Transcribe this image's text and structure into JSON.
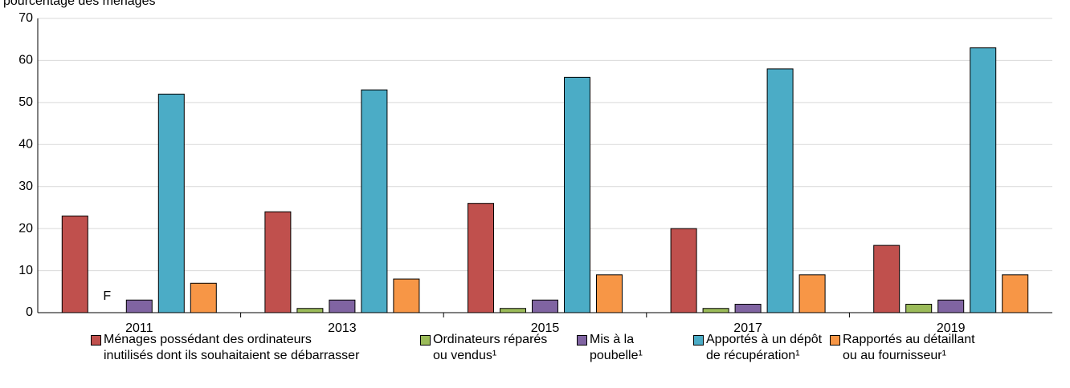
{
  "chart_data": {
    "type": "bar",
    "y_axis_label": "pourcentage des ménages",
    "categories": [
      "2011",
      "2013",
      "2015",
      "2017",
      "2019"
    ],
    "series": [
      {
        "name": "Ménages possédant des ordinateurs\ninutilisés dont ils souhaitaient se débarrasser",
        "color": "#c0504d",
        "values": [
          23,
          24,
          26,
          20,
          16
        ]
      },
      {
        "name": "Ordinateurs réparés\nou vendus¹",
        "color": "#9bbb59",
        "values": [
          null,
          1,
          1,
          1,
          2
        ],
        "value_labels": [
          "F",
          null,
          null,
          null,
          null
        ]
      },
      {
        "name": "Mis à la\npoubelle¹",
        "color": "#8064a2",
        "values": [
          3,
          3,
          3,
          2,
          3
        ]
      },
      {
        "name": "Apportés à un dépôt\nde récupération¹",
        "color": "#4bacc6",
        "values": [
          52,
          53,
          56,
          58,
          63
        ]
      },
      {
        "name": "Rapportés au détaillant\nou au fournisseur¹",
        "color": "#f79646",
        "values": [
          7,
          8,
          9,
          9,
          9
        ]
      }
    ],
    "ylim": [
      0,
      70
    ],
    "yticks": [
      0,
      10,
      20,
      30,
      40,
      50,
      60,
      70
    ],
    "grid": true,
    "legend": "bottom"
  }
}
